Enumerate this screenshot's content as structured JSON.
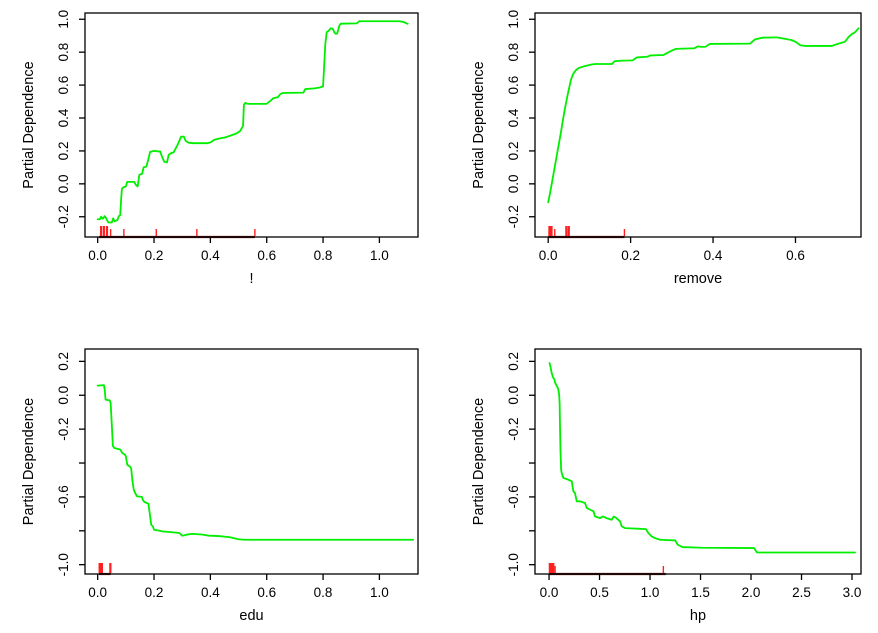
{
  "figure": {
    "title": "",
    "ylabel": "Partial Dependence",
    "background": "#ffffff"
  },
  "colors": {
    "curve": "#00ee00",
    "rug": "#ff1f1f",
    "rug_base": "#5c1212",
    "axis": "#000000",
    "text": "#000000"
  },
  "chart_data": [
    {
      "type": "line",
      "panel": "top-left",
      "title": "",
      "xlabel": "!",
      "ylabel": "Partial Dependence",
      "xlim": [
        -0.045,
        1.137
      ],
      "ylim": [
        -0.323,
        1.038
      ],
      "grid": false,
      "legend": null,
      "xticks": [
        0.0,
        0.2,
        0.4,
        0.6,
        0.8,
        1.0
      ],
      "xtick_labels": [
        "0.0",
        "0.2",
        "0.4",
        "0.6",
        "0.8",
        "1.0"
      ],
      "yticks": [
        -0.2,
        0.0,
        0.2,
        0.4,
        0.6,
        0.8,
        1.0
      ],
      "ytick_labels": [
        "-0.2",
        "0.0",
        "0.2",
        "0.4",
        "0.6",
        "0.8",
        "1.0"
      ],
      "points": [
        [
          0.0,
          -0.215
        ],
        [
          0.008,
          -0.215
        ],
        [
          0.012,
          -0.2
        ],
        [
          0.018,
          -0.212
        ],
        [
          0.025,
          -0.196
        ],
        [
          0.03,
          -0.21
        ],
        [
          0.038,
          -0.235
        ],
        [
          0.05,
          -0.235
        ],
        [
          0.055,
          -0.21
        ],
        [
          0.06,
          -0.228
        ],
        [
          0.07,
          -0.22
        ],
        [
          0.075,
          -0.196
        ],
        [
          0.08,
          -0.19
        ],
        [
          0.083,
          -0.1
        ],
        [
          0.086,
          -0.03
        ],
        [
          0.092,
          -0.02
        ],
        [
          0.1,
          -0.016
        ],
        [
          0.105,
          0.012
        ],
        [
          0.13,
          0.012
        ],
        [
          0.135,
          -0.005
        ],
        [
          0.142,
          -0.016
        ],
        [
          0.148,
          0.055
        ],
        [
          0.158,
          0.062
        ],
        [
          0.163,
          0.1
        ],
        [
          0.173,
          0.105
        ],
        [
          0.18,
          0.15
        ],
        [
          0.186,
          0.194
        ],
        [
          0.2,
          0.2
        ],
        [
          0.222,
          0.196
        ],
        [
          0.228,
          0.166
        ],
        [
          0.236,
          0.135
        ],
        [
          0.246,
          0.13
        ],
        [
          0.252,
          0.176
        ],
        [
          0.26,
          0.186
        ],
        [
          0.27,
          0.192
        ],
        [
          0.277,
          0.216
        ],
        [
          0.284,
          0.238
        ],
        [
          0.29,
          0.262
        ],
        [
          0.296,
          0.287
        ],
        [
          0.306,
          0.287
        ],
        [
          0.312,
          0.262
        ],
        [
          0.322,
          0.25
        ],
        [
          0.34,
          0.247
        ],
        [
          0.39,
          0.247
        ],
        [
          0.402,
          0.253
        ],
        [
          0.414,
          0.268
        ],
        [
          0.438,
          0.278
        ],
        [
          0.452,
          0.282
        ],
        [
          0.47,
          0.292
        ],
        [
          0.486,
          0.302
        ],
        [
          0.495,
          0.308
        ],
        [
          0.505,
          0.32
        ],
        [
          0.512,
          0.34
        ],
        [
          0.516,
          0.352
        ],
        [
          0.519,
          0.48
        ],
        [
          0.524,
          0.492
        ],
        [
          0.532,
          0.486
        ],
        [
          0.6,
          0.486
        ],
        [
          0.617,
          0.51
        ],
        [
          0.623,
          0.52
        ],
        [
          0.64,
          0.527
        ],
        [
          0.648,
          0.545
        ],
        [
          0.656,
          0.552
        ],
        [
          0.73,
          0.554
        ],
        [
          0.737,
          0.576
        ],
        [
          0.77,
          0.58
        ],
        [
          0.79,
          0.586
        ],
        [
          0.8,
          0.592
        ],
        [
          0.804,
          0.72
        ],
        [
          0.808,
          0.85
        ],
        [
          0.813,
          0.922
        ],
        [
          0.82,
          0.93
        ],
        [
          0.827,
          0.945
        ],
        [
          0.834,
          0.943
        ],
        [
          0.839,
          0.924
        ],
        [
          0.844,
          0.912
        ],
        [
          0.85,
          0.913
        ],
        [
          0.854,
          0.936
        ],
        [
          0.858,
          0.962
        ],
        [
          0.863,
          0.973
        ],
        [
          0.92,
          0.975
        ],
        [
          0.928,
          0.988
        ],
        [
          1.07,
          0.988
        ],
        [
          1.086,
          0.983
        ],
        [
          1.1,
          0.972
        ]
      ],
      "rug": {
        "span": [
          0.005,
          0.558
        ],
        "ticks": [
          [
            0.012,
            1
          ],
          [
            0.022,
            1
          ],
          [
            0.033,
            1
          ],
          [
            0.046,
            0
          ],
          [
            0.093,
            0
          ],
          [
            0.208,
            0
          ],
          [
            0.352,
            0
          ],
          [
            0.558,
            0
          ]
        ]
      }
    },
    {
      "type": "line",
      "panel": "top-right",
      "title": "",
      "xlabel": "remove",
      "ylabel": "Partial Dependence",
      "xlim": [
        -0.032,
        0.759
      ],
      "ylim": [
        -0.323,
        1.038
      ],
      "grid": false,
      "legend": null,
      "xticks": [
        0.0,
        0.2,
        0.4,
        0.6
      ],
      "xtick_labels": [
        "0.0",
        "0.2",
        "0.4",
        "0.6"
      ],
      "yticks": [
        -0.2,
        0.0,
        0.2,
        0.4,
        0.6,
        0.8,
        1.0
      ],
      "ytick_labels": [
        "-0.2",
        "0.0",
        "0.2",
        "0.4",
        "0.6",
        "0.8",
        "1.0"
      ],
      "points": [
        [
          0.0,
          -0.112
        ],
        [
          0.005,
          -0.05
        ],
        [
          0.01,
          0.02
        ],
        [
          0.02,
          0.16
        ],
        [
          0.03,
          0.3
        ],
        [
          0.04,
          0.45
        ],
        [
          0.048,
          0.55
        ],
        [
          0.055,
          0.63
        ],
        [
          0.06,
          0.665
        ],
        [
          0.067,
          0.69
        ],
        [
          0.075,
          0.705
        ],
        [
          0.09,
          0.716
        ],
        [
          0.105,
          0.725
        ],
        [
          0.115,
          0.728
        ],
        [
          0.155,
          0.728
        ],
        [
          0.161,
          0.745
        ],
        [
          0.175,
          0.748
        ],
        [
          0.205,
          0.75
        ],
        [
          0.215,
          0.768
        ],
        [
          0.24,
          0.772
        ],
        [
          0.248,
          0.78
        ],
        [
          0.28,
          0.783
        ],
        [
          0.29,
          0.797
        ],
        [
          0.3,
          0.81
        ],
        [
          0.31,
          0.82
        ],
        [
          0.355,
          0.824
        ],
        [
          0.363,
          0.835
        ],
        [
          0.372,
          0.832
        ],
        [
          0.382,
          0.833
        ],
        [
          0.392,
          0.85
        ],
        [
          0.49,
          0.852
        ],
        [
          0.502,
          0.878
        ],
        [
          0.52,
          0.888
        ],
        [
          0.555,
          0.89
        ],
        [
          0.59,
          0.874
        ],
        [
          0.6,
          0.863
        ],
        [
          0.612,
          0.842
        ],
        [
          0.622,
          0.838
        ],
        [
          0.688,
          0.838
        ],
        [
          0.7,
          0.848
        ],
        [
          0.712,
          0.857
        ],
        [
          0.72,
          0.863
        ],
        [
          0.728,
          0.89
        ],
        [
          0.737,
          0.91
        ],
        [
          0.744,
          0.92
        ],
        [
          0.753,
          0.945
        ]
      ],
      "rug": {
        "span": [
          0.0,
          0.185
        ],
        "ticks": [
          [
            0.003,
            1
          ],
          [
            0.008,
            1
          ],
          [
            0.016,
            0
          ],
          [
            0.044,
            1
          ],
          [
            0.05,
            1
          ],
          [
            0.185,
            0
          ]
        ]
      }
    },
    {
      "type": "line",
      "panel": "bottom-left",
      "title": "",
      "xlabel": "edu",
      "ylabel": "Partial Dependence",
      "xlim": [
        -0.045,
        1.137
      ],
      "ylim": [
        -1.055,
        0.273
      ],
      "grid": false,
      "legend": null,
      "xticks": [
        0.0,
        0.2,
        0.4,
        0.6,
        0.8,
        1.0
      ],
      "xtick_labels": [
        "0.0",
        "0.2",
        "0.4",
        "0.6",
        "0.8",
        "1.0"
      ],
      "yticks": [
        0.2,
        0.0,
        -0.2,
        -0.4,
        -0.6,
        -0.8,
        -1.0
      ],
      "ytick_labels": [
        "0.2",
        "0.0",
        "-0.2",
        "",
        "-0.6",
        "",
        "-1.0"
      ],
      "points": [
        [
          0.0,
          0.057
        ],
        [
          0.022,
          0.06
        ],
        [
          0.025,
          0.033
        ],
        [
          0.028,
          -0.026
        ],
        [
          0.043,
          -0.03
        ],
        [
          0.046,
          -0.046
        ],
        [
          0.05,
          -0.17
        ],
        [
          0.054,
          -0.3
        ],
        [
          0.06,
          -0.312
        ],
        [
          0.08,
          -0.32
        ],
        [
          0.087,
          -0.34
        ],
        [
          0.096,
          -0.35
        ],
        [
          0.1,
          -0.36
        ],
        [
          0.105,
          -0.41
        ],
        [
          0.115,
          -0.422
        ],
        [
          0.119,
          -0.432
        ],
        [
          0.123,
          -0.5
        ],
        [
          0.128,
          -0.557
        ],
        [
          0.133,
          -0.577
        ],
        [
          0.14,
          -0.597
        ],
        [
          0.157,
          -0.6
        ],
        [
          0.16,
          -0.617
        ],
        [
          0.166,
          -0.63
        ],
        [
          0.18,
          -0.64
        ],
        [
          0.185,
          -0.7
        ],
        [
          0.19,
          -0.764
        ],
        [
          0.196,
          -0.774
        ],
        [
          0.2,
          -0.794
        ],
        [
          0.22,
          -0.8
        ],
        [
          0.232,
          -0.804
        ],
        [
          0.255,
          -0.807
        ],
        [
          0.29,
          -0.813
        ],
        [
          0.3,
          -0.829
        ],
        [
          0.315,
          -0.823
        ],
        [
          0.335,
          -0.818
        ],
        [
          0.37,
          -0.822
        ],
        [
          0.396,
          -0.829
        ],
        [
          0.43,
          -0.831
        ],
        [
          0.47,
          -0.838
        ],
        [
          0.5,
          -0.85
        ],
        [
          0.52,
          -0.853
        ],
        [
          0.7,
          -0.853
        ],
        [
          0.9,
          -0.853
        ],
        [
          1.12,
          -0.853
        ]
      ],
      "rug": {
        "span": [
          0.005,
          0.046
        ],
        "ticks": [
          [
            0.007,
            1
          ],
          [
            0.01,
            1
          ],
          [
            0.015,
            1
          ],
          [
            0.045,
            1
          ]
        ]
      }
    },
    {
      "type": "line",
      "panel": "bottom-right",
      "title": "",
      "xlabel": "hp",
      "ylabel": "Partial Dependence",
      "xlim": [
        -0.139,
        3.089
      ],
      "ylim": [
        -1.055,
        0.273
      ],
      "grid": false,
      "legend": null,
      "xticks": [
        0.0,
        0.5,
        1.0,
        1.5,
        2.0,
        2.5,
        3.0
      ],
      "xtick_labels": [
        "0.0",
        "0.5",
        "1.0",
        "1.5",
        "2.0",
        "2.5",
        "3.0"
      ],
      "yticks": [
        0.2,
        0.0,
        -0.2,
        -0.4,
        -0.6,
        -0.8,
        -1.0
      ],
      "ytick_labels": [
        "0.2",
        "0.0",
        "-0.2",
        "",
        "-0.6",
        "",
        "-1.0"
      ],
      "points": [
        [
          0.005,
          0.19
        ],
        [
          0.012,
          0.175
        ],
        [
          0.025,
          0.135
        ],
        [
          0.04,
          0.105
        ],
        [
          0.052,
          0.095
        ],
        [
          0.06,
          0.075
        ],
        [
          0.08,
          0.05
        ],
        [
          0.09,
          0.04
        ],
        [
          0.1,
          0.005
        ],
        [
          0.105,
          -0.05
        ],
        [
          0.109,
          -0.2
        ],
        [
          0.113,
          -0.32
        ],
        [
          0.12,
          -0.44
        ],
        [
          0.126,
          -0.46
        ],
        [
          0.142,
          -0.488
        ],
        [
          0.19,
          -0.498
        ],
        [
          0.225,
          -0.508
        ],
        [
          0.241,
          -0.567
        ],
        [
          0.257,
          -0.577
        ],
        [
          0.274,
          -0.626
        ],
        [
          0.307,
          -0.626
        ],
        [
          0.356,
          -0.636
        ],
        [
          0.373,
          -0.665
        ],
        [
          0.406,
          -0.675
        ],
        [
          0.44,
          -0.685
        ],
        [
          0.455,
          -0.715
        ],
        [
          0.505,
          -0.725
        ],
        [
          0.535,
          -0.715
        ],
        [
          0.568,
          -0.725
        ],
        [
          0.62,
          -0.735
        ],
        [
          0.64,
          -0.716
        ],
        [
          0.66,
          -0.722
        ],
        [
          0.703,
          -0.744
        ],
        [
          0.72,
          -0.774
        ],
        [
          0.752,
          -0.784
        ],
        [
          0.96,
          -0.79
        ],
        [
          0.983,
          -0.813
        ],
        [
          1.016,
          -0.833
        ],
        [
          1.049,
          -0.843
        ],
        [
          1.1,
          -0.853
        ],
        [
          1.25,
          -0.857
        ],
        [
          1.274,
          -0.882
        ],
        [
          1.307,
          -0.892
        ],
        [
          1.32,
          -0.896
        ],
        [
          1.52,
          -0.9
        ],
        [
          2.03,
          -0.902
        ],
        [
          2.06,
          -0.928
        ],
        [
          2.5,
          -0.928
        ],
        [
          3.03,
          -0.928
        ]
      ],
      "rug": {
        "span": [
          0.0,
          1.155
        ],
        "ticks": [
          [
            0.008,
            1
          ],
          [
            0.018,
            1
          ],
          [
            0.028,
            1
          ],
          [
            0.042,
            1
          ],
          [
            0.06,
            0
          ],
          [
            1.132,
            0
          ]
        ]
      }
    }
  ]
}
